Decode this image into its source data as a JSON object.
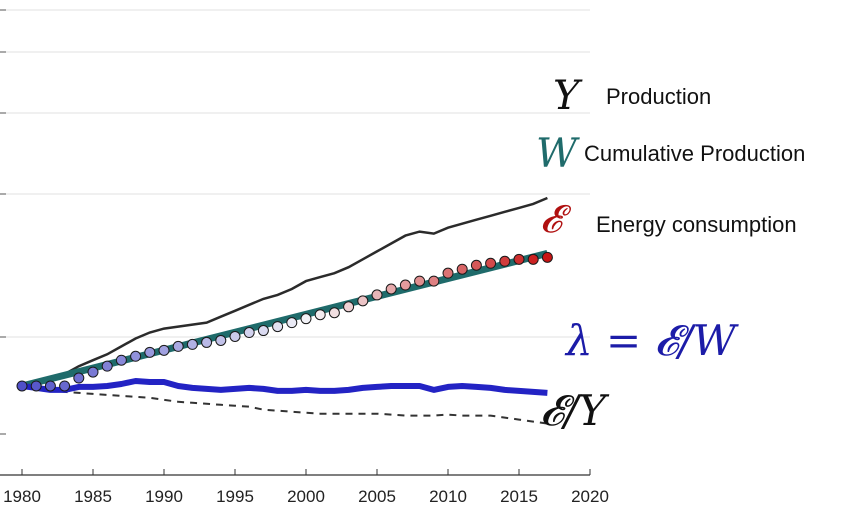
{
  "chart_data": {
    "type": "line",
    "title": "",
    "xlabel": "",
    "ylabel": "",
    "xlim": [
      1980,
      2020
    ],
    "ylim": [
      0.55,
      2.9
    ],
    "grid": "horizontal",
    "xticks": [
      1980,
      1985,
      1990,
      1995,
      2000,
      2005,
      2010,
      2015,
      2020
    ],
    "yticks_count_hint": 6,
    "colors": {
      "production": "#2b2b2b",
      "cumulative": "#1f6b6b",
      "energy_low": "#3b3bbf",
      "energy_high": "#b01010",
      "lambda": "#2323c4",
      "ratio": "#333333",
      "grid": "#e0e0e0"
    },
    "series": [
      {
        "name": "Production",
        "symbol": "Y",
        "style": "thin-solid",
        "x": [
          1980,
          1981,
          1982,
          1983,
          1984,
          1985,
          1986,
          1987,
          1988,
          1989,
          1990,
          1991,
          1992,
          1993,
          1994,
          1995,
          1996,
          1997,
          1998,
          1999,
          2000,
          2001,
          2002,
          2003,
          2004,
          2005,
          2006,
          2007,
          2008,
          2009,
          2010,
          2011,
          2012,
          2013,
          2014,
          2015,
          2016,
          2017
        ],
        "y": [
          1.0,
          1.02,
          1.04,
          1.06,
          1.1,
          1.13,
          1.16,
          1.2,
          1.24,
          1.27,
          1.29,
          1.3,
          1.31,
          1.32,
          1.35,
          1.38,
          1.41,
          1.44,
          1.46,
          1.49,
          1.53,
          1.55,
          1.57,
          1.6,
          1.64,
          1.68,
          1.72,
          1.76,
          1.78,
          1.77,
          1.8,
          1.82,
          1.84,
          1.86,
          1.88,
          1.9,
          1.92,
          1.95
        ]
      },
      {
        "name": "Cumulative Production",
        "symbol": "W",
        "style": "thick-solid",
        "x": [
          1980,
          2017
        ],
        "y": [
          1.0,
          1.67
        ]
      },
      {
        "name": "Energy consumption",
        "symbol": "𝓔",
        "style": "dots",
        "x": [
          1980,
          1981,
          1982,
          1983,
          1984,
          1985,
          1986,
          1987,
          1988,
          1989,
          1990,
          1991,
          1992,
          1993,
          1994,
          1995,
          1996,
          1997,
          1998,
          1999,
          2000,
          2001,
          2002,
          2003,
          2004,
          2005,
          2006,
          2007,
          2008,
          2009,
          2010,
          2011,
          2012,
          2013,
          2014,
          2015,
          2016,
          2017
        ],
        "y": [
          1.0,
          1.0,
          1.0,
          1.0,
          1.04,
          1.07,
          1.1,
          1.13,
          1.15,
          1.17,
          1.18,
          1.2,
          1.21,
          1.22,
          1.23,
          1.25,
          1.27,
          1.28,
          1.3,
          1.32,
          1.34,
          1.36,
          1.37,
          1.4,
          1.43,
          1.46,
          1.49,
          1.51,
          1.53,
          1.53,
          1.57,
          1.59,
          1.61,
          1.62,
          1.63,
          1.64,
          1.64,
          1.65
        ]
      },
      {
        "name": "λ = 𝓔/W",
        "style": "thick-solid-blue",
        "x": [
          1980,
          1981,
          1982,
          1983,
          1984,
          1985,
          1986,
          1987,
          1988,
          1989,
          1990,
          1991,
          1992,
          1993,
          1994,
          1995,
          1996,
          1997,
          1998,
          1999,
          2000,
          2001,
          2002,
          2003,
          2004,
          2005,
          2006,
          2007,
          2008,
          2009,
          2010,
          2011,
          2012,
          2013,
          2014,
          2015,
          2016,
          2017
        ],
        "y": [
          1.0,
          0.99,
          0.98,
          0.98,
          0.995,
          0.995,
          1.0,
          1.01,
          1.025,
          1.02,
          1.02,
          1.0,
          0.99,
          0.985,
          0.98,
          0.985,
          0.99,
          0.985,
          0.975,
          0.975,
          0.98,
          0.975,
          0.975,
          0.98,
          0.99,
          0.995,
          1.0,
          1.0,
          1.0,
          0.98,
          0.995,
          1.0,
          0.995,
          0.99,
          0.98,
          0.975,
          0.97,
          0.965
        ]
      },
      {
        "name": "𝓔/Y",
        "style": "dashed",
        "x": [
          1980,
          1981,
          1982,
          1983,
          1984,
          1985,
          1986,
          1987,
          1988,
          1989,
          1990,
          1991,
          1992,
          1993,
          1994,
          1995,
          1996,
          1997,
          1998,
          1999,
          2000,
          2001,
          2002,
          2003,
          2004,
          2005,
          2006,
          2007,
          2008,
          2009,
          2010,
          2011,
          2012,
          2013,
          2014,
          2015,
          2016,
          2017
        ],
        "y": [
          1.0,
          0.99,
          0.98,
          0.97,
          0.965,
          0.96,
          0.955,
          0.95,
          0.945,
          0.94,
          0.93,
          0.92,
          0.915,
          0.91,
          0.905,
          0.9,
          0.895,
          0.88,
          0.875,
          0.87,
          0.865,
          0.86,
          0.86,
          0.86,
          0.86,
          0.86,
          0.855,
          0.85,
          0.85,
          0.85,
          0.855,
          0.85,
          0.85,
          0.85,
          0.84,
          0.83,
          0.82,
          0.81
        ]
      }
    ]
  },
  "labels": {
    "production_symbol": "Y",
    "production_text": "Production",
    "cumulative_symbol": "W",
    "cumulative_text": "Cumulative Production",
    "energy_symbol": "𝓔",
    "energy_text": "Energy consumption",
    "lambda_eq": "λ = 𝓔/W",
    "ratio_eq": "𝓔/Y"
  }
}
